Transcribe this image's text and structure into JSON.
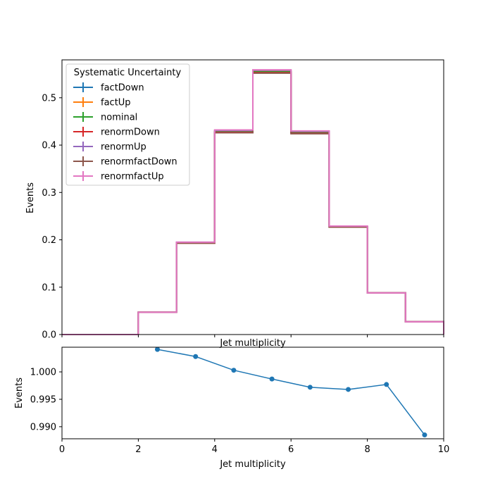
{
  "chart_data": [
    {
      "type": "line",
      "subtype": "step-histogram",
      "xlabel": "Jet multiplicity",
      "ylabel": "Events",
      "xlim": [
        0,
        10
      ],
      "ylim": [
        0,
        0.58
      ],
      "xticks": [
        "0",
        "2",
        "4",
        "6",
        "8",
        "10"
      ],
      "yticks": [
        "0.0",
        "0.1",
        "0.2",
        "0.3",
        "0.4",
        "0.5"
      ],
      "bin_edges": [
        0,
        1,
        2,
        3,
        4,
        5,
        6,
        7,
        8,
        9,
        10
      ],
      "grid": false,
      "legend": {
        "title": "Systematic Uncertainty",
        "placement": "upper-left"
      },
      "series": [
        {
          "name": "factDown",
          "color": "#1f77b4",
          "values": [
            0,
            0,
            0.047,
            0.194,
            0.429,
            0.555,
            0.427,
            0.228,
            0.088,
            0.027
          ]
        },
        {
          "name": "factUp",
          "color": "#ff7f0e",
          "values": [
            0,
            0,
            0.047,
            0.194,
            0.429,
            0.556,
            0.428,
            0.228,
            0.088,
            0.027
          ]
        },
        {
          "name": "nominal",
          "color": "#2ca02c",
          "values": [
            0,
            0,
            0.047,
            0.194,
            0.429,
            0.555,
            0.427,
            0.228,
            0.088,
            0.027
          ]
        },
        {
          "name": "renormDown",
          "color": "#d62728",
          "values": [
            0,
            0,
            0.047,
            0.193,
            0.427,
            0.553,
            0.425,
            0.227,
            0.088,
            0.027
          ]
        },
        {
          "name": "renormUp",
          "color": "#9467bd",
          "values": [
            0,
            0,
            0.047,
            0.195,
            0.431,
            0.558,
            0.429,
            0.229,
            0.088,
            0.027
          ]
        },
        {
          "name": "renormfactDown",
          "color": "#8c564b",
          "values": [
            0,
            0,
            0.047,
            0.193,
            0.426,
            0.552,
            0.424,
            0.227,
            0.088,
            0.027
          ]
        },
        {
          "name": "renormfactUp",
          "color": "#e377c2",
          "values": [
            0,
            0,
            0.047,
            0.195,
            0.432,
            0.559,
            0.43,
            0.229,
            0.088,
            0.027
          ]
        }
      ]
    },
    {
      "type": "line",
      "xlabel": "Jet multiplicity",
      "ylabel": "Events",
      "xlim": [
        0,
        10
      ],
      "ylim": [
        0.9878,
        1.0045
      ],
      "xticks": [
        "0",
        "2",
        "4",
        "6",
        "8",
        "10"
      ],
      "yticks": [
        "0.990",
        "0.995",
        "1.000"
      ],
      "color": "#1f77b4",
      "x": [
        2.5,
        3.5,
        4.5,
        5.5,
        6.5,
        7.5,
        8.5,
        9.5
      ],
      "y": [
        1.0041,
        1.0028,
        1.0003,
        0.9987,
        0.9972,
        0.9968,
        0.9977,
        0.9885
      ]
    }
  ]
}
